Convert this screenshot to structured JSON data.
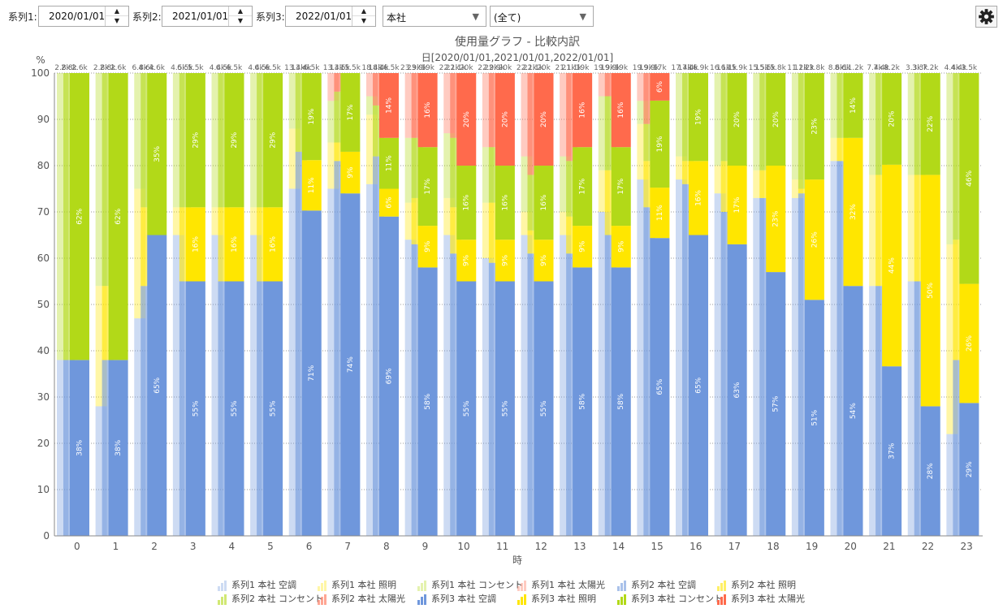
{
  "toolbar": {
    "series1_label": "系列1:",
    "series1_date": "2020/01/01",
    "series2_label": "系列2:",
    "series2_date": "2021/01/01",
    "series3_label": "系列3:",
    "series3_date": "2022/01/01",
    "location_select": "本社",
    "category_select": "(全て)"
  },
  "colors": {
    "aircon": "#6f97dc",
    "lighting": "#ffe600",
    "outlet": "#b2d918",
    "solar": "#ff6a4c"
  },
  "chart_data": {
    "type": "bar",
    "title": "使用量グラフ - 比較内訳",
    "subtitle": "日[2020/01/01,2021/01/01,2022/01/01]",
    "xlabel": "時",
    "ylabel": "%",
    "ylim": [
      0,
      100
    ],
    "yticks": [
      0,
      10,
      20,
      30,
      40,
      50,
      60,
      70,
      80,
      90,
      100
    ],
    "categories": [
      "0",
      "1",
      "2",
      "3",
      "4",
      "5",
      "6",
      "7",
      "8",
      "9",
      "10",
      "11",
      "12",
      "13",
      "14",
      "15",
      "16",
      "17",
      "18",
      "19",
      "20",
      "21",
      "22",
      "23"
    ],
    "component_names": [
      "空調",
      "照明",
      "コンセント",
      "太陽光"
    ],
    "series": [
      {
        "name": "系列1",
        "totals": [
          "2.8k",
          "2.8k",
          "6.8k",
          "4.5k",
          "4.4k",
          "4.4k",
          "13.4k",
          "13.4k",
          "18.4k",
          "23.9k",
          "22.1k",
          "22.9k",
          "22.1k",
          "21.1k",
          "19.9k",
          "19.9k",
          "17.4k",
          "16.1k",
          "15.5k",
          "11.2k",
          "8.6k",
          "7.4k",
          "3.3k",
          "4.4k"
        ],
        "values": [
          [
            38,
            0,
            62,
            0
          ],
          [
            28,
            26,
            46,
            0
          ],
          [
            47,
            28,
            25,
            0
          ],
          [
            65,
            6,
            29,
            0
          ],
          [
            65,
            6,
            29,
            0
          ],
          [
            65,
            6,
            29,
            0
          ],
          [
            75,
            13,
            12,
            0
          ],
          [
            75,
            10,
            9,
            6
          ],
          [
            76,
            15,
            4,
            5
          ],
          [
            64,
            8,
            14,
            14
          ],
          [
            65,
            8,
            14,
            13
          ],
          [
            60,
            12,
            12,
            16
          ],
          [
            65,
            5,
            12,
            18
          ],
          [
            65,
            5,
            12,
            18
          ],
          [
            70,
            9,
            16,
            5
          ],
          [
            77,
            12,
            5,
            6
          ],
          [
            77,
            5,
            18,
            0
          ],
          [
            74,
            6,
            20,
            0
          ],
          [
            73,
            6,
            21,
            0
          ],
          [
            73,
            4,
            23,
            0
          ],
          [
            81,
            5,
            14,
            0
          ],
          [
            54,
            24,
            22,
            0
          ],
          [
            55,
            23,
            22,
            0
          ],
          [
            22,
            41,
            37,
            0
          ]
        ]
      },
      {
        "name": "系列2",
        "totals": [
          "2.8k",
          "2.8k",
          "4.6k",
          "6.5k",
          "6.5k",
          "6.5k",
          "13.4k",
          "13.5k",
          "18.4k",
          "23.9k",
          "22.1k",
          "22.9k",
          "22.1k",
          "21.1k",
          "19.9k",
          "19.9k",
          "17.4k",
          "16.1k",
          "15.5k",
          "11.2k",
          "8.6k",
          "7.4k",
          "3.3k",
          "4.4k"
        ],
        "values": [
          [
            38,
            0,
            62,
            0
          ],
          [
            38,
            16,
            46,
            0
          ],
          [
            54,
            17,
            29,
            0
          ],
          [
            55,
            16,
            29,
            0
          ],
          [
            55,
            16,
            29,
            0
          ],
          [
            55,
            16,
            29,
            0
          ],
          [
            83,
            0,
            17,
            0
          ],
          [
            81,
            4,
            11,
            4
          ],
          [
            82,
            0,
            11,
            7
          ],
          [
            63,
            10,
            13,
            14
          ],
          [
            61,
            10,
            15,
            14
          ],
          [
            59,
            13,
            12,
            16
          ],
          [
            61,
            5,
            12,
            22
          ],
          [
            61,
            8,
            12,
            19
          ],
          [
            65,
            14,
            16,
            5
          ],
          [
            71,
            10,
            8,
            11
          ],
          [
            76,
            5,
            19,
            0
          ],
          [
            70,
            11,
            19,
            0
          ],
          [
            73,
            6,
            21,
            0
          ],
          [
            74,
            1,
            25,
            0
          ],
          [
            81,
            5,
            14,
            0
          ],
          [
            54,
            24,
            22,
            0
          ],
          [
            55,
            23,
            22,
            0
          ],
          [
            38,
            26,
            36,
            0
          ]
        ]
      },
      {
        "name": "系列3",
        "totals": [
          "2.6k",
          "2.6k",
          "4.6k",
          "5.5k",
          "6.5k",
          "6.5k",
          "6.5k",
          "15.5k",
          "16.5k",
          "19k",
          "20k",
          "20k",
          "20k",
          "19k",
          "19k",
          "17k",
          "16.9k",
          "15.9k",
          "15.8k",
          "13.8k",
          "11.2k",
          "8.2k",
          "7.2k",
          "3.5k"
        ],
        "values": [
          [
            38,
            0,
            62,
            0
          ],
          [
            38,
            0,
            62,
            0
          ],
          [
            65,
            0,
            35,
            0
          ],
          [
            55,
            16,
            29,
            0
          ],
          [
            55,
            16,
            29,
            0
          ],
          [
            55,
            16,
            29,
            0
          ],
          [
            71,
            11,
            19,
            0
          ],
          [
            74,
            9,
            17,
            0
          ],
          [
            69,
            6,
            11,
            14
          ],
          [
            58,
            9,
            17,
            16
          ],
          [
            55,
            9,
            16,
            20
          ],
          [
            55,
            9,
            16,
            20
          ],
          [
            55,
            9,
            16,
            20
          ],
          [
            58,
            9,
            17,
            16
          ],
          [
            58,
            9,
            17,
            16
          ],
          [
            65,
            11,
            19,
            6
          ],
          [
            65,
            16,
            19,
            0
          ],
          [
            63,
            17,
            20,
            0
          ],
          [
            57,
            23,
            20,
            0
          ],
          [
            51,
            26,
            23,
            0
          ],
          [
            54,
            32,
            14,
            0
          ],
          [
            37,
            44,
            20,
            0
          ],
          [
            28,
            50,
            22,
            0
          ],
          [
            29,
            26,
            46,
            0
          ]
        ]
      }
    ],
    "legend": [
      "系列1 本社 空調",
      "系列1 本社 照明",
      "系列1 本社 コンセント",
      "系列1 本社 太陽光",
      "系列2 本社 空調",
      "系列2 本社 照明",
      "系列2 本社 コンセント",
      "系列2 本社 太陽光",
      "系列3 本社 空調",
      "系列3 本社 照明",
      "系列3 本社 コンセント",
      "系列3 本社 太陽光"
    ],
    "legend_position": "bottom"
  }
}
